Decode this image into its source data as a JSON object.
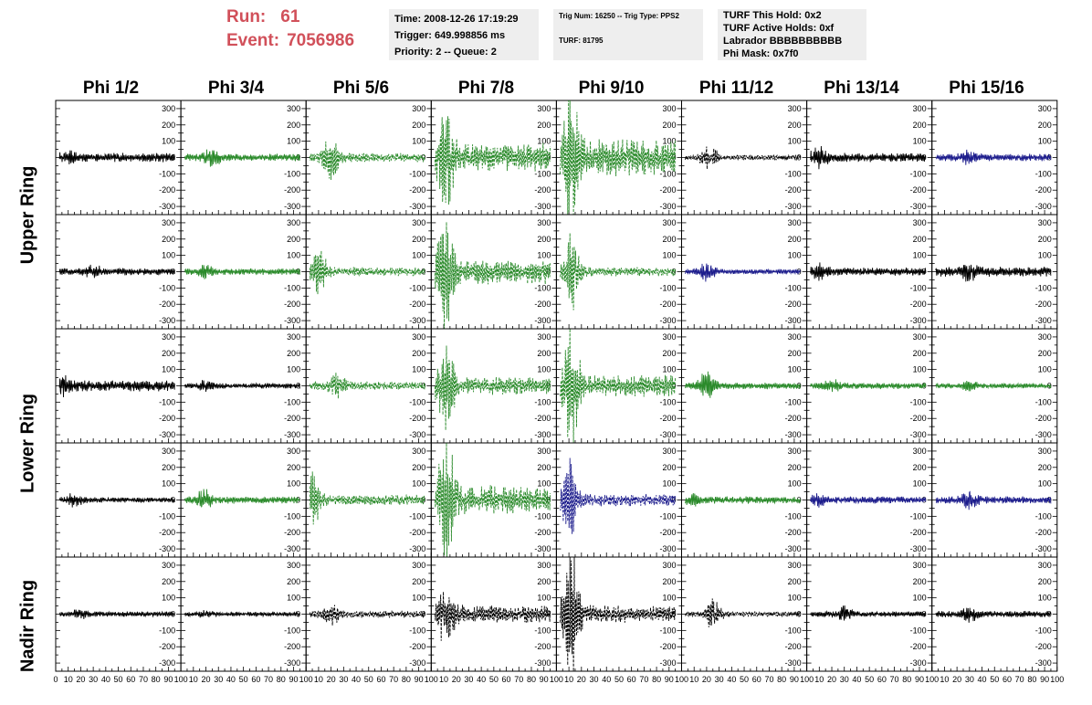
{
  "header": {
    "run_label": "Run:",
    "run_value": "61",
    "event_label": "Event:",
    "event_value": "7056986",
    "info_time": "Time: 2008-12-26 17:19:29",
    "info_trigger": "Trigger: 649.998856 ms",
    "info_priority": "Priority: 2 -- Queue: 2",
    "info_trig": "Trig Num: 16250 -- Trig Type: PPS2",
    "info_turf": "TURF: 81795",
    "info_hold": "TURF This Hold: 0x2",
    "info_active": "TURF Active Holds: 0xf",
    "info_labrador": "Labrador BBBBBBBBBB",
    "info_phimask": "Phi Mask: 0x7f0"
  },
  "columns": [
    "Phi 1/2",
    "Phi 3/4",
    "Phi 5/6",
    "Phi 7/8",
    "Phi 9/10",
    "Phi 11/12",
    "Phi 13/14",
    "Phi 15/16"
  ],
  "rings": [
    "Upper Ring",
    "Lower Ring",
    "Nadir Ring"
  ],
  "colors": {
    "black": "#000000",
    "green": "#2a8a2a",
    "blue": "#1c1c8c",
    "run_text": "#d1505a",
    "info_bg": "#eeeeee"
  },
  "chart_data": {
    "type": "line",
    "xlim": [
      0,
      100
    ],
    "ylim": [
      -350,
      350
    ],
    "y_ticks": [
      -300,
      -200,
      -100,
      0,
      100,
      200,
      300
    ],
    "x_tick_labels": [
      "0",
      "10",
      "20",
      "30",
      "40",
      "50",
      "60",
      "70",
      "80",
      "90",
      "100"
    ],
    "panels": [
      {
        "row": 0,
        "col": 0,
        "color": "black",
        "dashed": false,
        "amp": 25,
        "burst_at": 10,
        "burst_amp": 20
      },
      {
        "row": 0,
        "col": 1,
        "color": "green",
        "dashed": false,
        "amp": 20,
        "burst_at": 25,
        "burst_amp": 40
      },
      {
        "row": 0,
        "col": 2,
        "color": "green",
        "dashed": true,
        "amp": 25,
        "burst_at": 20,
        "burst_amp": 120
      },
      {
        "row": 0,
        "col": 3,
        "color": "green",
        "dashed": true,
        "amp": 80,
        "burst_at": 12,
        "burst_amp": 280
      },
      {
        "row": 0,
        "col": 4,
        "color": "green",
        "dashed": true,
        "amp": 100,
        "burst_at": 12,
        "burst_amp": 340
      },
      {
        "row": 0,
        "col": 5,
        "color": "black",
        "dashed": true,
        "amp": 15,
        "burst_at": 22,
        "burst_amp": 70
      },
      {
        "row": 0,
        "col": 6,
        "color": "black",
        "dashed": false,
        "amp": 25,
        "burst_at": 10,
        "burst_amp": 40
      },
      {
        "row": 0,
        "col": 7,
        "color": "blue",
        "dashed": false,
        "amp": 20,
        "burst_at": 30,
        "burst_amp": 30
      },
      {
        "row": 1,
        "col": 0,
        "color": "black",
        "dashed": false,
        "amp": 20,
        "burst_at": 30,
        "burst_amp": 25
      },
      {
        "row": 1,
        "col": 1,
        "color": "green",
        "dashed": false,
        "amp": 18,
        "burst_at": 20,
        "burst_amp": 25
      },
      {
        "row": 1,
        "col": 2,
        "color": "green",
        "dashed": true,
        "amp": 25,
        "burst_at": 10,
        "burst_amp": 120
      },
      {
        "row": 1,
        "col": 3,
        "color": "green",
        "dashed": true,
        "amp": 70,
        "burst_at": 12,
        "burst_amp": 330
      },
      {
        "row": 1,
        "col": 4,
        "color": "green",
        "dashed": true,
        "amp": 25,
        "burst_at": 12,
        "burst_amp": 200
      },
      {
        "row": 1,
        "col": 5,
        "color": "blue",
        "dashed": false,
        "amp": 15,
        "burst_at": 20,
        "burst_amp": 50
      },
      {
        "row": 1,
        "col": 6,
        "color": "black",
        "dashed": false,
        "amp": 22,
        "burst_at": 10,
        "burst_amp": 30
      },
      {
        "row": 1,
        "col": 7,
        "color": "black",
        "dashed": false,
        "amp": 28,
        "burst_at": 30,
        "burst_amp": 40
      },
      {
        "row": 2,
        "col": 0,
        "color": "black",
        "dashed": false,
        "amp": 30,
        "burst_at": 5,
        "burst_amp": 40
      },
      {
        "row": 2,
        "col": 1,
        "color": "black",
        "dashed": false,
        "amp": 15,
        "burst_at": 20,
        "burst_amp": 20
      },
      {
        "row": 2,
        "col": 2,
        "color": "green",
        "dashed": true,
        "amp": 25,
        "burst_at": 25,
        "burst_amp": 60
      },
      {
        "row": 2,
        "col": 3,
        "color": "green",
        "dashed": true,
        "amp": 50,
        "burst_at": 12,
        "burst_amp": 230
      },
      {
        "row": 2,
        "col": 4,
        "color": "green",
        "dashed": true,
        "amp": 60,
        "burst_at": 12,
        "burst_amp": 330
      },
      {
        "row": 2,
        "col": 5,
        "color": "green",
        "dashed": false,
        "amp": 18,
        "burst_at": 20,
        "burst_amp": 70
      },
      {
        "row": 2,
        "col": 6,
        "color": "green",
        "dashed": false,
        "amp": 18,
        "burst_at": 20,
        "burst_amp": 25
      },
      {
        "row": 2,
        "col": 7,
        "color": "green",
        "dashed": false,
        "amp": 15,
        "burst_at": 30,
        "burst_amp": 20
      },
      {
        "row": 3,
        "col": 0,
        "color": "black",
        "dashed": false,
        "amp": 15,
        "burst_at": 15,
        "burst_amp": 30
      },
      {
        "row": 3,
        "col": 1,
        "color": "green",
        "dashed": false,
        "amp": 20,
        "burst_at": 18,
        "burst_amp": 50
      },
      {
        "row": 3,
        "col": 2,
        "color": "green",
        "dashed": true,
        "amp": 30,
        "burst_at": 5,
        "burst_amp": 150
      },
      {
        "row": 3,
        "col": 3,
        "color": "green",
        "dashed": true,
        "amp": 80,
        "burst_at": 12,
        "burst_amp": 330
      },
      {
        "row": 3,
        "col": 4,
        "color": "blue",
        "dashed": true,
        "amp": 35,
        "burst_at": 10,
        "burst_amp": 200
      },
      {
        "row": 3,
        "col": 5,
        "color": "green",
        "dashed": false,
        "amp": 20,
        "burst_at": 10,
        "burst_amp": 25
      },
      {
        "row": 3,
        "col": 6,
        "color": "blue",
        "dashed": false,
        "amp": 20,
        "burst_at": 10,
        "burst_amp": 25
      },
      {
        "row": 3,
        "col": 7,
        "color": "blue",
        "dashed": false,
        "amp": 20,
        "burst_at": 30,
        "burst_amp": 40
      },
      {
        "row": 4,
        "col": 0,
        "color": "black",
        "dashed": false,
        "amp": 15,
        "burst_at": 20,
        "burst_amp": 20
      },
      {
        "row": 4,
        "col": 1,
        "color": "black",
        "dashed": false,
        "amp": 12,
        "burst_at": 20,
        "burst_amp": 15
      },
      {
        "row": 4,
        "col": 2,
        "color": "black",
        "dashed": true,
        "amp": 20,
        "burst_at": 20,
        "burst_amp": 50
      },
      {
        "row": 4,
        "col": 3,
        "color": "black",
        "dashed": true,
        "amp": 50,
        "burst_at": 12,
        "burst_amp": 170
      },
      {
        "row": 4,
        "col": 4,
        "color": "black",
        "dashed": true,
        "amp": 50,
        "burst_at": 12,
        "burst_amp": 320
      },
      {
        "row": 4,
        "col": 5,
        "color": "black",
        "dashed": true,
        "amp": 15,
        "burst_at": 25,
        "burst_amp": 80
      },
      {
        "row": 4,
        "col": 6,
        "color": "black",
        "dashed": false,
        "amp": 15,
        "burst_at": 30,
        "burst_amp": 40
      },
      {
        "row": 4,
        "col": 7,
        "color": "black",
        "dashed": false,
        "amp": 18,
        "burst_at": 30,
        "burst_amp": 30
      }
    ]
  }
}
